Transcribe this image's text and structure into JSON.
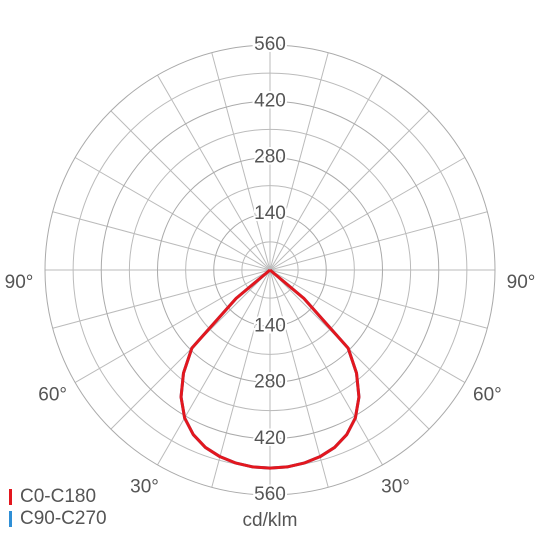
{
  "chart_data": {
    "type": "polar",
    "axis_label": "cd/klm",
    "rlim": [
      0,
      560
    ],
    "rticks": [
      140,
      280,
      420,
      560
    ],
    "angle_ticks": [
      {
        "value": -90,
        "label": "90°"
      },
      {
        "value": 90,
        "label": "90°"
      },
      {
        "value": -60,
        "label": "60°"
      },
      {
        "value": 60,
        "label": "60°"
      },
      {
        "value": -30,
        "label": "30°"
      },
      {
        "value": 30,
        "label": "30°"
      }
    ],
    "x": [
      -55,
      -50,
      -45,
      -40,
      -35,
      -30,
      -25,
      -20,
      -15,
      -10,
      -5,
      0,
      5,
      10,
      15,
      20,
      25,
      30,
      35,
      40,
      45,
      50,
      55
    ],
    "series": [
      {
        "name": "C0-C180",
        "color": "#e3171e",
        "values": [
          0,
          110,
          275,
          335,
          386,
          425,
          452,
          470,
          481,
          488,
          492,
          493,
          492,
          488,
          481,
          470,
          452,
          425,
          386,
          335,
          275,
          110,
          0
        ]
      },
      {
        "name": "C90-C270",
        "color": "#2f8fd6",
        "values": [
          0,
          110,
          275,
          335,
          386,
          425,
          452,
          470,
          481,
          488,
          492,
          493,
          492,
          488,
          481,
          470,
          452,
          425,
          386,
          335,
          275,
          110,
          0
        ]
      }
    ]
  }
}
